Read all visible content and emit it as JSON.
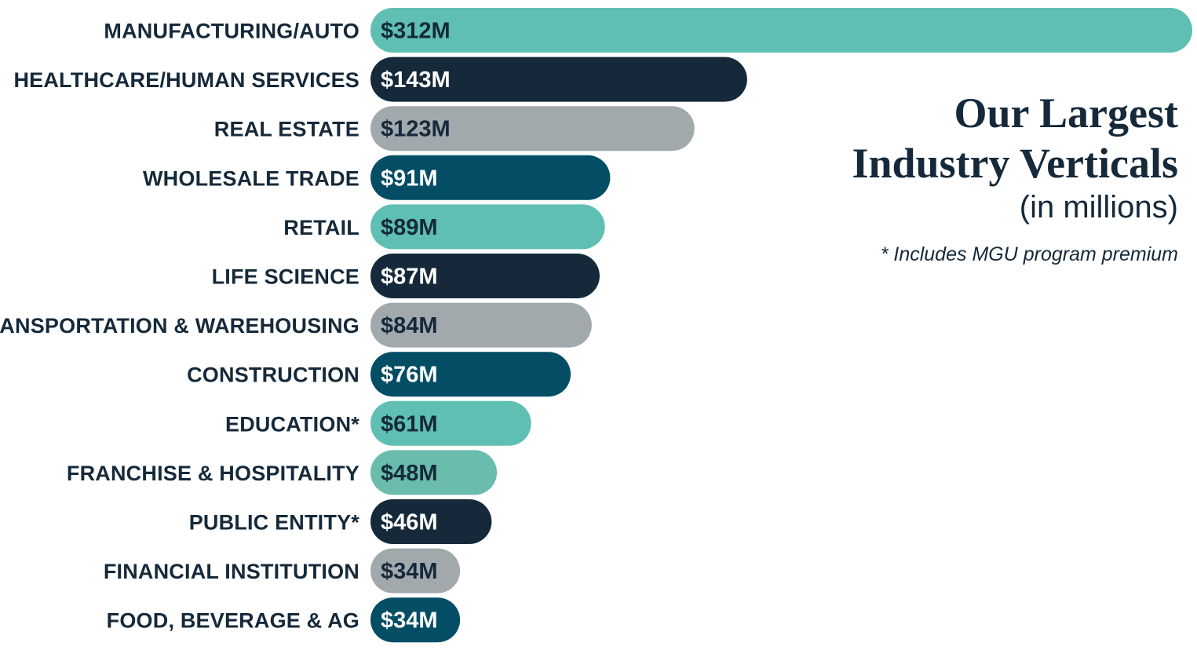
{
  "chart_data": {
    "type": "bar",
    "orientation": "horizontal",
    "title_line1": "Our Largest",
    "title_line2": "Industry Verticals",
    "subtitle": "(in millions)",
    "footnote": "* Includes MGU program premium",
    "categories": [
      "MANUFACTURING/AUTO",
      "HEALTHCARE/HUMAN SERVICES",
      "REAL ESTATE",
      "WHOLESALE TRADE",
      "RETAIL",
      "LIFE SCIENCE",
      "TRANSPORTATION & WAREHOUSING",
      "CONSTRUCTION",
      "EDUCATION*",
      "FRANCHISE & HOSPITALITY",
      "PUBLIC ENTITY*",
      "FINANCIAL INSTITUTION",
      "FOOD, BEVERAGE & AG"
    ],
    "values": [
      312,
      143,
      123,
      91,
      89,
      87,
      84,
      76,
      61,
      48,
      46,
      34,
      34
    ],
    "value_labels": [
      "$312M",
      "$143M",
      "$123M",
      "$91M",
      "$89M",
      "$87M",
      "$84M",
      "$76M",
      "$61M",
      "$48M",
      "$46M",
      "$34M",
      "$34M"
    ],
    "bar_colors": [
      "#5fbfb3",
      "#15293a",
      "#a2a9ad",
      "#034d65",
      "#5fbfb3",
      "#15293a",
      "#a2a9ad",
      "#034d65",
      "#5fbfb3",
      "#6abdad",
      "#15293a",
      "#a2a9ad",
      "#034d65"
    ],
    "label_colors": [
      "#15293a",
      "#ffffff",
      "#15293a",
      "#ffffff",
      "#15293a",
      "#ffffff",
      "#15293a",
      "#ffffff",
      "#15293a",
      "#15293a",
      "#ffffff",
      "#15293a",
      "#ffffff"
    ],
    "xlim": [
      0,
      312
    ],
    "grid": false,
    "legend": "none"
  }
}
